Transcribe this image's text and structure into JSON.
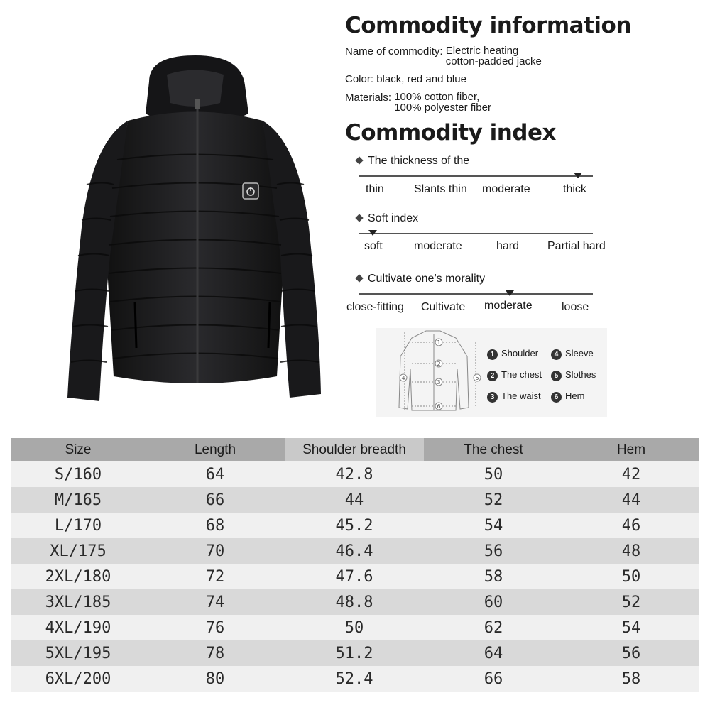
{
  "info": {
    "heading1": "Commodity information",
    "name_label": "Name of commodity:",
    "name_value_1": "Electric heating",
    "name_value_2": "cotton-padded jacke",
    "color_label": "Color:",
    "color_value": "black, red and blue",
    "materials_label": "Materials:",
    "materials_value_1": "100% cotton fiber,",
    "materials_value_2": "100% polyester fiber",
    "heading2": "Commodity index"
  },
  "indexes": [
    {
      "title": "The thickness of the",
      "ticks": [
        "thin",
        "Slants thin",
        "moderate",
        "thick"
      ],
      "selected": "thick"
    },
    {
      "title": "Soft index",
      "ticks": [
        "soft",
        "moderate",
        "hard",
        "Partial hard"
      ],
      "selected": "soft"
    },
    {
      "title": "Cultivate one’s morality",
      "ticks": [
        "close-fitting",
        "Cultivate",
        "moderate",
        "loose"
      ],
      "selected": "moderate"
    }
  ],
  "measure_legend": [
    {
      "num": "1",
      "label": "Shoulder"
    },
    {
      "num": "4",
      "label": "Sleeve"
    },
    {
      "num": "2",
      "label": "The chest"
    },
    {
      "num": "5",
      "label": "Slothes"
    },
    {
      "num": "3",
      "label": "The waist"
    },
    {
      "num": "6",
      "label": "Hem"
    }
  ],
  "table": {
    "headers": [
      "Size",
      "Length",
      "Shoulder breadth",
      "The chest",
      "Hem"
    ],
    "rows": [
      [
        "S/160",
        "64",
        "42.8",
        "50",
        "42"
      ],
      [
        "M/165",
        "66",
        "44",
        "52",
        "44"
      ],
      [
        "L/170",
        "68",
        "45.2",
        "54",
        "46"
      ],
      [
        "XL/175",
        "70",
        "46.4",
        "56",
        "48"
      ],
      [
        "2XL/180",
        "72",
        "47.6",
        "58",
        "50"
      ],
      [
        "3XL/185",
        "74",
        "48.8",
        "60",
        "52"
      ],
      [
        "4XL/190",
        "76",
        "50",
        "62",
        "54"
      ],
      [
        "5XL/195",
        "78",
        "51.2",
        "64",
        "56"
      ],
      [
        "6XL/200",
        "80",
        "52.4",
        "66",
        "58"
      ]
    ]
  },
  "colors": {
    "jacket": "#1c1c1e",
    "header_bg": "#a9a9a9",
    "header_hl": "#c9c9c9",
    "row_light": "#f0f0f0",
    "row_dark": "#d9d9d9"
  }
}
